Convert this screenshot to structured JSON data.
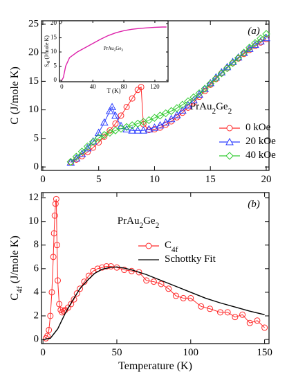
{
  "chart_data": [
    {
      "type": "line",
      "xlabel": null,
      "ylabel": "C (J/mole K)",
      "annotations": [
        "(a)",
        "PrAu2Ge2"
      ],
      "xlim": [
        -0.12,
        20.25
      ],
      "ylim": [
        -0.6,
        25.6
      ],
      "xticks": [
        0,
        5,
        10,
        15,
        20
      ],
      "yticks": [
        0,
        5,
        10,
        15,
        20,
        25
      ],
      "legend": "lower right",
      "series": [
        {
          "name": "0 kOe",
          "color": "#ff2a2a",
          "marker": "circle",
          "x": [
            2.5,
            3,
            3.5,
            4,
            4.5,
            5,
            5.5,
            6,
            6.5,
            7,
            7.5,
            8,
            8.5,
            8.8,
            9,
            9.5,
            10,
            10.5,
            11,
            11.5,
            12,
            12.5,
            13,
            13.5,
            14,
            14.5,
            15,
            15.5,
            16,
            16.5,
            17,
            17.5,
            18,
            18.5,
            19,
            19.5,
            20
          ],
          "values": [
            0.8,
            1.3,
            1.9,
            2.6,
            3.4,
            4.3,
            5.3,
            6.4,
            7.6,
            9.0,
            10.5,
            12.0,
            13.5,
            14.0,
            7.5,
            6.5,
            6.6,
            6.9,
            7.4,
            8.0,
            8.7,
            9.5,
            10.4,
            11.3,
            12.3,
            13.3,
            14.4,
            15.4,
            16.4,
            17.3,
            18.2,
            19.0,
            19.8,
            20.5,
            21.2,
            21.8,
            22.4
          ]
        },
        {
          "name": "20 kOe",
          "color": "#2a3cff",
          "marker": "triangle",
          "x": [
            2.5,
            3,
            3.5,
            4,
            4.5,
            5,
            5.5,
            6,
            6.2,
            6.5,
            7,
            7.5,
            8,
            8.5,
            9,
            9.5,
            10,
            10.5,
            11,
            11.5,
            12,
            12.5,
            13,
            13.5,
            14,
            14.5,
            15,
            15.5,
            16,
            16.5,
            17,
            17.5,
            18,
            18.5,
            19,
            19.5,
            20
          ],
          "values": [
            0.8,
            1.5,
            2.3,
            3.3,
            4.5,
            6.0,
            7.8,
            9.8,
            10.5,
            9.0,
            7.2,
            6.6,
            6.4,
            6.4,
            6.4,
            6.6,
            6.9,
            7.3,
            7.8,
            8.4,
            9.1,
            9.9,
            10.8,
            11.7,
            12.7,
            13.7,
            14.7,
            15.7,
            16.6,
            17.5,
            18.4,
            19.2,
            20.0,
            20.7,
            21.4,
            22.0,
            22.6
          ]
        },
        {
          "name": "40 kOe",
          "color": "#33cc33",
          "marker": "diamond",
          "x": [
            2.5,
            3,
            3.5,
            4,
            4.5,
            5,
            5.5,
            6,
            6.5,
            7,
            7.5,
            8,
            8.5,
            9,
            9.5,
            10,
            10.5,
            11,
            11.5,
            12,
            12.5,
            13,
            13.5,
            14,
            14.5,
            15,
            15.5,
            16,
            16.5,
            17,
            17.5,
            18,
            18.5,
            19,
            19.5,
            20
          ],
          "values": [
            0.9,
            1.8,
            2.7,
            3.6,
            4.4,
            5.1,
            5.6,
            6.0,
            6.4,
            6.7,
            7.0,
            7.3,
            7.6,
            7.9,
            8.2,
            8.6,
            9.0,
            9.4,
            9.8,
            10.3,
            10.9,
            11.5,
            12.2,
            12.9,
            13.7,
            14.6,
            15.5,
            16.4,
            17.3,
            18.2,
            19.1,
            20.0,
            20.9,
            21.7,
            22.5,
            23.3
          ]
        }
      ]
    },
    {
      "type": "line",
      "xlabel": "T (K)",
      "ylabel": "S4f (J/mole K)",
      "annotations": [
        "PrAu2Ge2"
      ],
      "xlim": [
        -3,
        137
      ],
      "ylim": [
        -0.5,
        21
      ],
      "xticks": [
        0,
        40,
        80,
        120
      ],
      "yticks": [
        0,
        5,
        10,
        15,
        20
      ],
      "series": [
        {
          "color": "#dd22aa",
          "x": [
            0,
            2,
            5,
            10,
            20,
            30,
            40,
            50,
            60,
            70,
            80,
            90,
            100,
            110,
            120,
            130,
            135
          ],
          "values": [
            0,
            1,
            5,
            8,
            10,
            11.5,
            13,
            14.5,
            15.8,
            16.8,
            17.5,
            18,
            18.3,
            18.5,
            18.7,
            18.8,
            18.8
          ]
        }
      ]
    },
    {
      "type": "line",
      "xlabel": "Temperature (K)",
      "ylabel": "C4f (J/mole K)",
      "annotations": [
        "(b)",
        "PrAu2Ge2"
      ],
      "xlim": [
        -1,
        153
      ],
      "ylim": [
        -0.35,
        12.45
      ],
      "xticks": [
        0,
        50,
        100,
        150
      ],
      "yticks": [
        0,
        2,
        4,
        6,
        8,
        10,
        12
      ],
      "legend": "upper center",
      "series": [
        {
          "name": "C4f",
          "color": "#ff2a2a",
          "marker": "circle",
          "x": [
            2,
            3,
            4,
            5,
            6,
            7,
            7.5,
            8,
            8.5,
            9,
            9.5,
            10,
            11,
            12,
            13,
            14,
            15,
            17,
            19,
            21,
            23,
            25,
            28,
            31,
            34,
            37,
            40,
            43,
            46,
            50,
            55,
            60,
            65,
            70,
            75,
            80,
            85,
            90,
            95,
            100,
            107,
            113,
            120,
            125,
            130,
            135,
            140,
            145,
            150
          ],
          "values": [
            0.1,
            0.3,
            0.8,
            2,
            4,
            7,
            9,
            10.5,
            11.5,
            11.9,
            8,
            5,
            3,
            2.5,
            2.3,
            2.4,
            2.5,
            2.7,
            3.0,
            3.4,
            3.9,
            4.3,
            4.9,
            5.4,
            5.8,
            6.0,
            6.1,
            6.2,
            6.2,
            6.1,
            5.9,
            5.8,
            5.7,
            5.0,
            4.9,
            4.7,
            4.3,
            3.7,
            3.5,
            3.5,
            2.8,
            2.6,
            2.3,
            2.3,
            1.9,
            2.1,
            1.4,
            1.6,
            1.0
          ]
        },
        {
          "name": "Schottky Fit",
          "color": "#000000",
          "x": [
            0,
            5,
            10,
            15,
            20,
            25,
            30,
            35,
            40,
            45,
            50,
            55,
            60,
            70,
            80,
            90,
            100,
            110,
            120,
            130,
            140,
            150
          ],
          "values": [
            0,
            0.1,
            0.9,
            2.2,
            3.3,
            4.3,
            5.0,
            5.6,
            5.95,
            6.1,
            6.15,
            6.05,
            5.9,
            5.5,
            5.0,
            4.5,
            4.0,
            3.5,
            3.1,
            2.75,
            2.4,
            2.1
          ]
        }
      ]
    }
  ]
}
